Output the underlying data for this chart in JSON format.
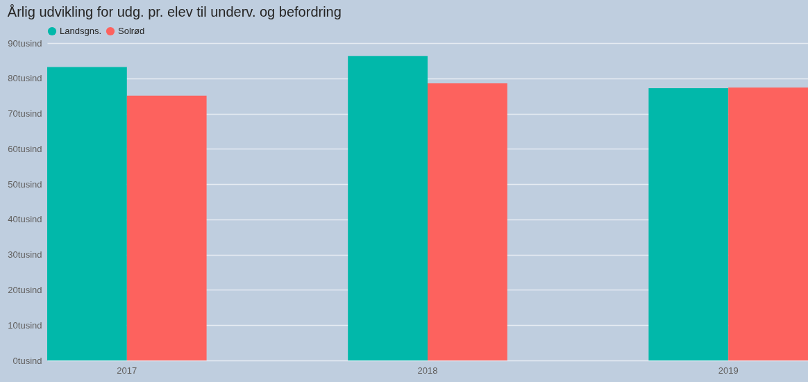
{
  "chart_data": {
    "type": "bar",
    "title": "Årlig udvikling for udg. pr. elev til underv. og befordring",
    "categories": [
      "2017",
      "2018",
      "2019"
    ],
    "series": [
      {
        "name": "Landsgns.",
        "color": "#01b8aa",
        "values": [
          83.2,
          86.3,
          77.2
        ]
      },
      {
        "name": "Solrød",
        "color": "#fd625e",
        "values": [
          75.1,
          78.6,
          77.4
        ]
      }
    ],
    "ylim": [
      0,
      90
    ],
    "yticks": [
      {
        "value": 0,
        "label": "0tusind"
      },
      {
        "value": 10,
        "label": "10tusind"
      },
      {
        "value": 20,
        "label": "20tusind"
      },
      {
        "value": 30,
        "label": "30tusind"
      },
      {
        "value": 40,
        "label": "40tusind"
      },
      {
        "value": 50,
        "label": "50tusind"
      },
      {
        "value": 60,
        "label": "60tusind"
      },
      {
        "value": 70,
        "label": "70tusind"
      },
      {
        "value": 80,
        "label": "80tusind"
      },
      {
        "value": 90,
        "label": "90tusind"
      }
    ],
    "grid": "y",
    "legend": "top left"
  }
}
